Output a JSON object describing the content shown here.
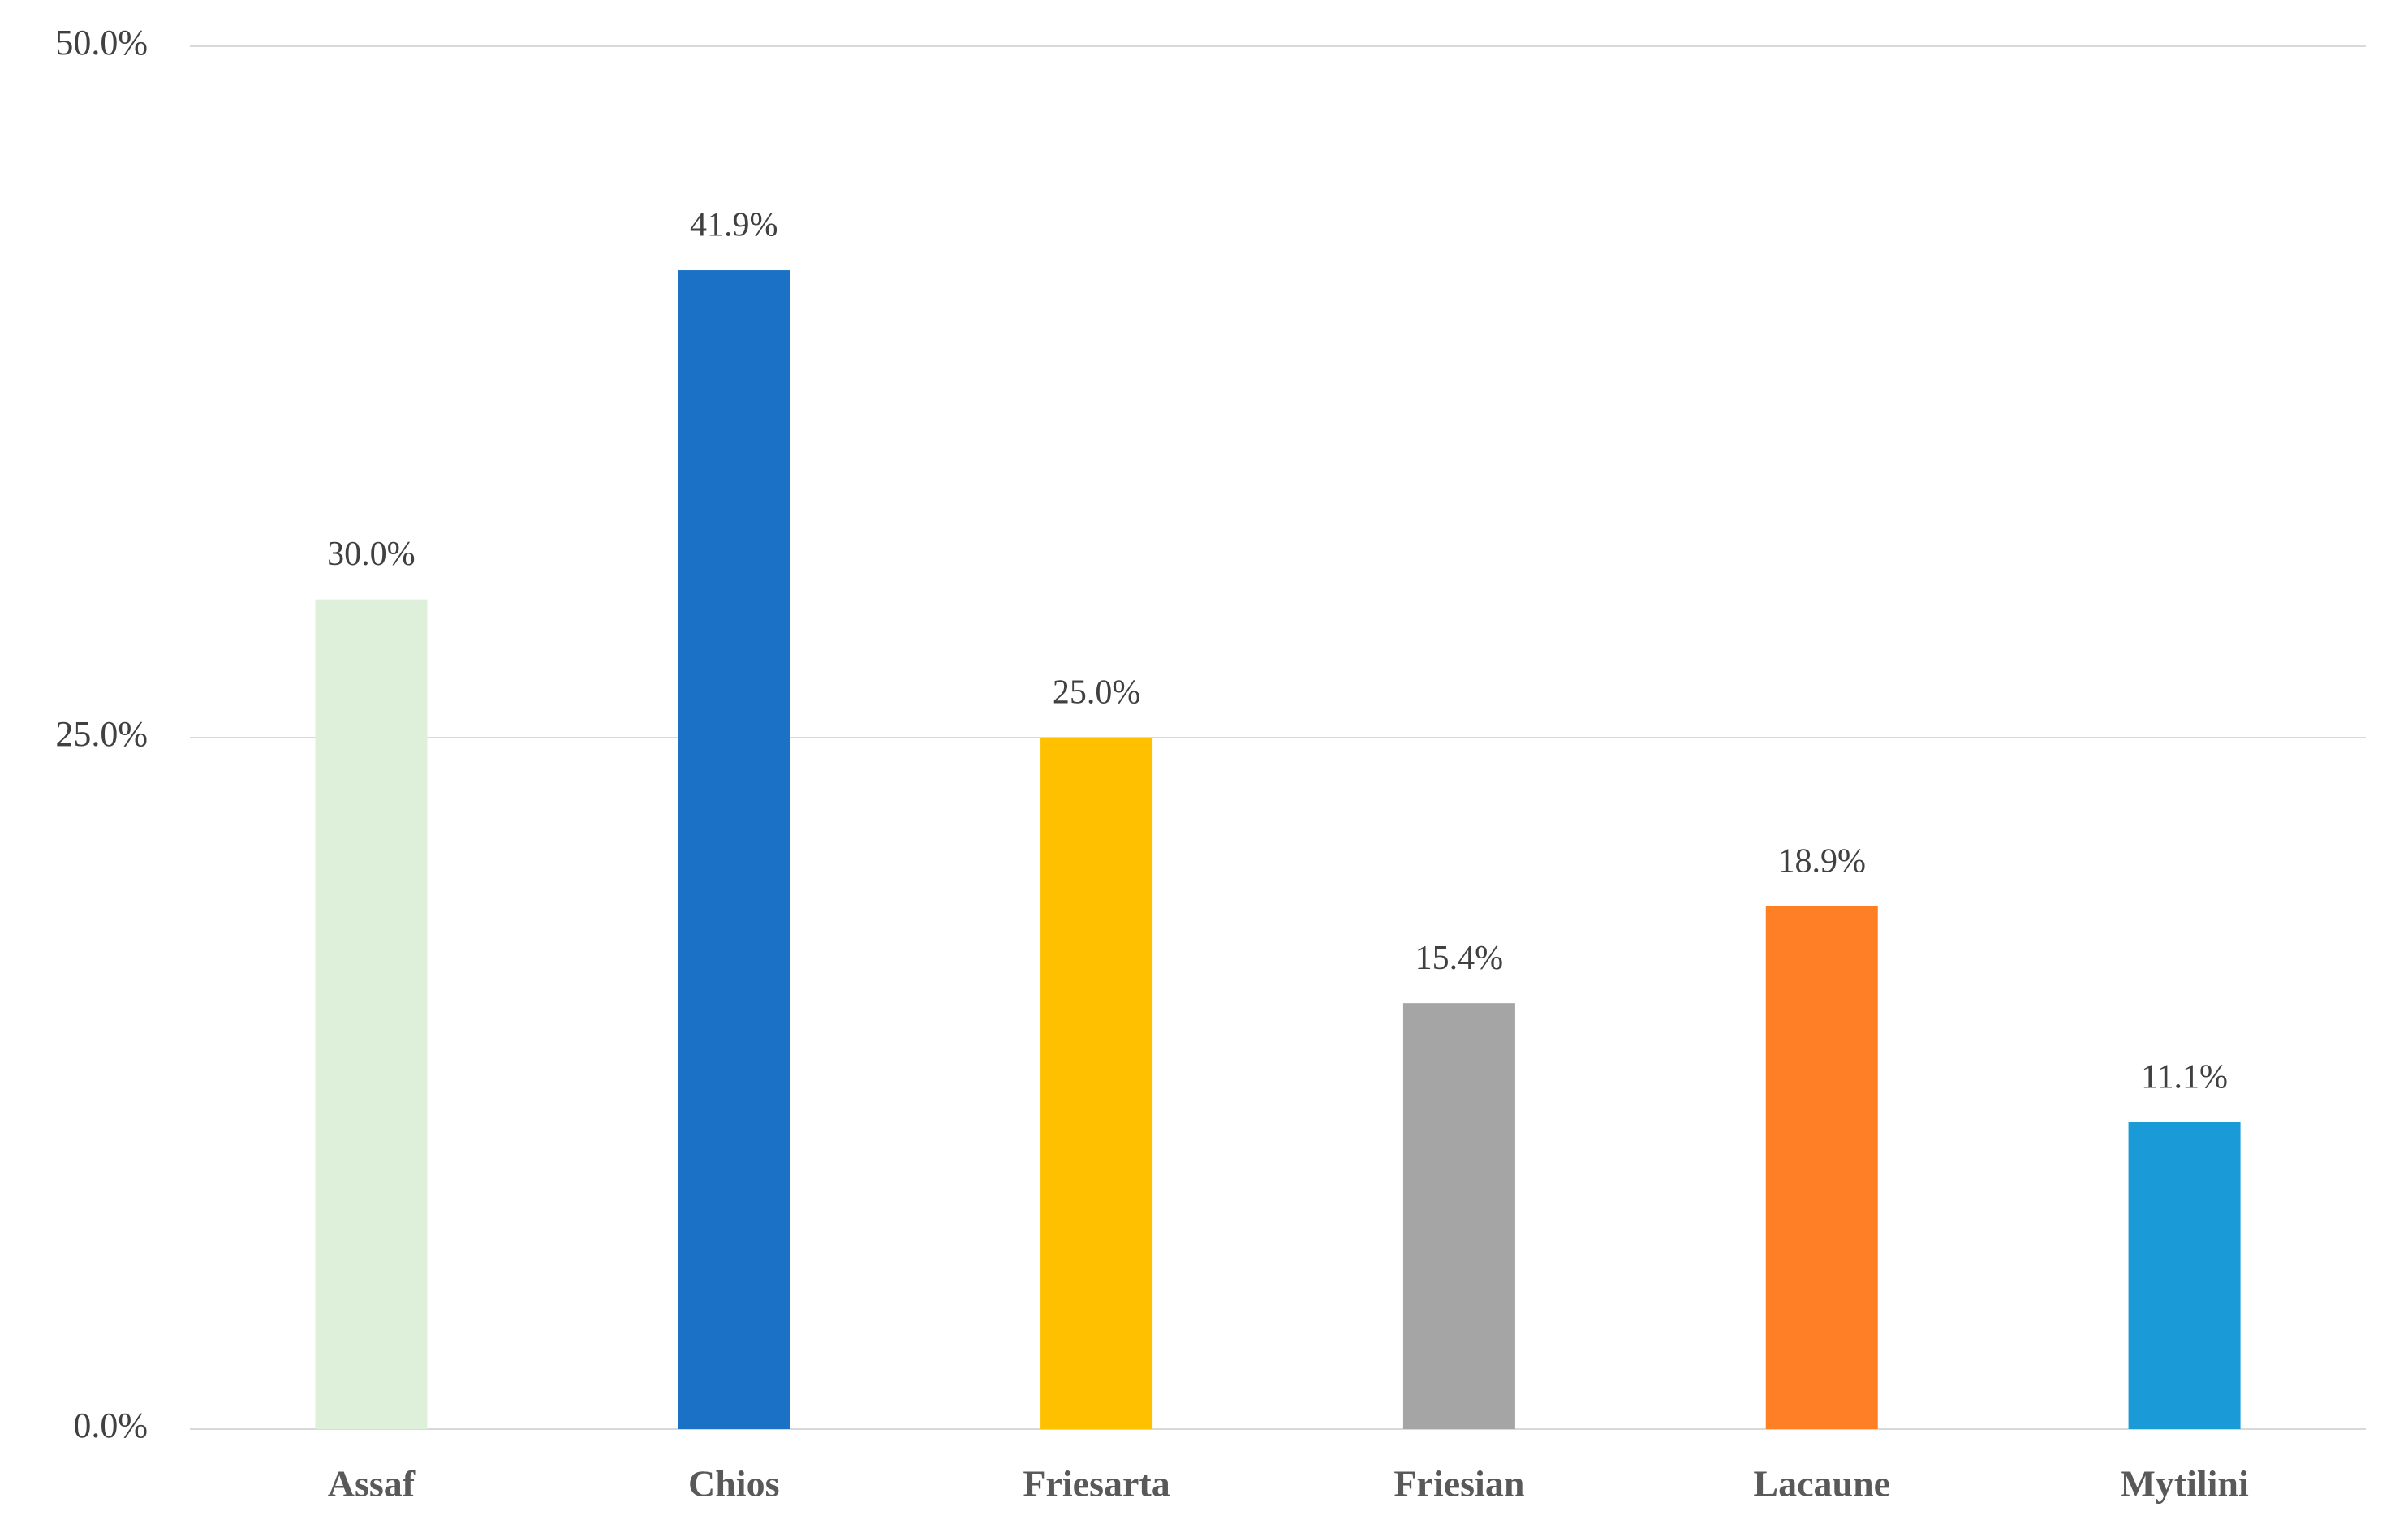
{
  "chart_data": {
    "type": "bar",
    "categories": [
      "Assaf",
      "Chios",
      "Friesarta",
      "Friesian",
      "Lacaune",
      "Mytilini"
    ],
    "values": [
      30.0,
      41.9,
      25.0,
      15.4,
      18.9,
      11.1
    ],
    "value_labels": [
      "30.0%",
      "41.9%",
      "25.0%",
      "15.4%",
      "18.9%",
      "11.1%"
    ],
    "colors": [
      "#dff0da",
      "#1a71c6",
      "#ffc000",
      "#a5a5a5",
      "#ff7f27",
      "#1a9bd7"
    ],
    "ylim": [
      0,
      50
    ],
    "yticks": [
      {
        "value": 0,
        "label": "0.0%"
      },
      {
        "value": 25,
        "label": "25.0%"
      },
      {
        "value": 50,
        "label": "50.0%"
      }
    ],
    "grid": true
  }
}
